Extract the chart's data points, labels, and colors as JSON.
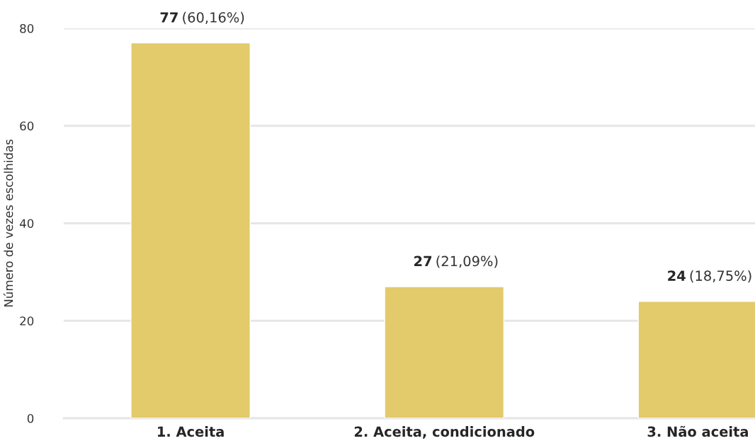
{
  "chart_data": {
    "type": "bar",
    "ylabel": "Número de vezes escolhidas",
    "categories": [
      "1. Aceita",
      "2. Aceita, condicionado",
      "3. Não aceita"
    ],
    "values": [
      77,
      27,
      24
    ],
    "color": "#e3ca6b",
    "value_labels": [
      "77 (60,16%)",
      "27 (21,09%)",
      "24 (18,75%)"
    ],
    "ylim": [
      0,
      80
    ],
    "yticks": [
      0,
      20,
      40,
      60,
      80
    ],
    "grid": "y",
    "legend": false
  }
}
